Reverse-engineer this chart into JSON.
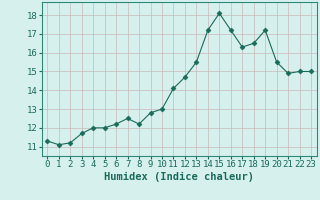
{
  "x": [
    0,
    1,
    2,
    3,
    4,
    5,
    6,
    7,
    8,
    9,
    10,
    11,
    12,
    13,
    14,
    15,
    16,
    17,
    18,
    19,
    20,
    21,
    22,
    23
  ],
  "y": [
    11.3,
    11.1,
    11.2,
    11.7,
    12.0,
    12.0,
    12.2,
    12.5,
    12.2,
    12.8,
    13.0,
    14.1,
    14.7,
    15.5,
    17.2,
    18.1,
    17.2,
    16.3,
    16.5,
    17.2,
    15.5,
    14.9,
    15.0,
    15.0
  ],
  "line_color": "#1a6b5a",
  "marker": "D",
  "marker_size": 2.5,
  "bg_color": "#d6f0ee",
  "grid_color": "#c8b8b8",
  "spine_color": "#2d8a78",
  "xlabel": "Humidex (Indice chaleur)",
  "ylim": [
    10.5,
    18.7
  ],
  "xlim": [
    -0.5,
    23.5
  ],
  "yticks": [
    11,
    12,
    13,
    14,
    15,
    16,
    17,
    18
  ],
  "xticks": [
    0,
    1,
    2,
    3,
    4,
    5,
    6,
    7,
    8,
    9,
    10,
    11,
    12,
    13,
    14,
    15,
    16,
    17,
    18,
    19,
    20,
    21,
    22,
    23
  ],
  "xlabel_fontsize": 7.5,
  "tick_fontsize": 6.5
}
